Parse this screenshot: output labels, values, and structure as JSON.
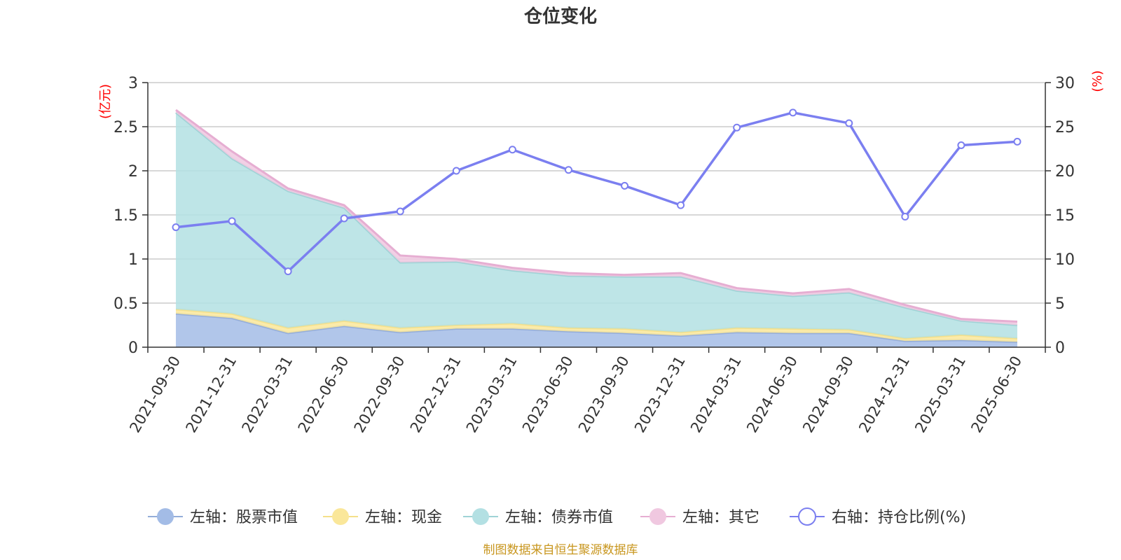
{
  "chart_data": {
    "type": "area",
    "title": "仓位变化",
    "y_left_unit": "(亿元)",
    "y_right_unit": "(%)",
    "ylim_left": [
      0,
      3
    ],
    "ylim_right": [
      0,
      30
    ],
    "y_left_ticks": [
      "0",
      "0.5",
      "1",
      "1.5",
      "2",
      "2.5",
      "3"
    ],
    "y_right_ticks": [
      "0",
      "5",
      "10",
      "15",
      "20",
      "25",
      "30"
    ],
    "categories": [
      "2021-09-30",
      "2021-12-31",
      "2022-03-31",
      "2022-06-30",
      "2022-09-30",
      "2022-12-31",
      "2023-03-31",
      "2023-06-30",
      "2023-09-30",
      "2023-12-31",
      "2024-03-31",
      "2024-06-30",
      "2024-09-30",
      "2024-12-31",
      "2025-03-31",
      "2025-06-30"
    ],
    "stacked_series": [
      {
        "name": "左轴：股票市值",
        "color": "#a3bce6",
        "line": "#94add9",
        "values": [
          0.38,
          0.33,
          0.16,
          0.24,
          0.17,
          0.21,
          0.21,
          0.18,
          0.16,
          0.13,
          0.17,
          0.16,
          0.16,
          0.07,
          0.08,
          0.06
        ]
      },
      {
        "name": "左轴：现金",
        "color": "#fae79a",
        "line": "#f5e08a",
        "values": [
          0.05,
          0.05,
          0.06,
          0.06,
          0.05,
          0.04,
          0.06,
          0.04,
          0.05,
          0.04,
          0.05,
          0.05,
          0.04,
          0.03,
          0.06,
          0.04
        ]
      },
      {
        "name": "左轴：债券市值",
        "color": "#b3e0e3",
        "line": "#9fd3d6",
        "values": [
          2.23,
          1.76,
          1.55,
          1.28,
          0.74,
          0.72,
          0.6,
          0.59,
          0.59,
          0.63,
          0.42,
          0.37,
          0.42,
          0.35,
          0.16,
          0.15
        ]
      },
      {
        "name": "左轴：其它",
        "color": "#f0c8e0",
        "line": "#e6aed2",
        "values": [
          0.03,
          0.08,
          0.03,
          0.03,
          0.08,
          0.03,
          0.03,
          0.03,
          0.02,
          0.04,
          0.03,
          0.03,
          0.04,
          0.03,
          0.02,
          0.04
        ]
      }
    ],
    "line_series": {
      "name": "右轴：持仓比例(%)",
      "color": "#7b7ff0",
      "values": [
        13.6,
        14.3,
        8.6,
        14.6,
        15.4,
        20.0,
        22.4,
        20.1,
        18.3,
        16.1,
        24.9,
        26.6,
        25.4,
        14.8,
        22.9,
        23.3
      ]
    },
    "legend_position": "bottom",
    "grid": true
  },
  "source_note": "制图数据来自恒生聚源数据库"
}
